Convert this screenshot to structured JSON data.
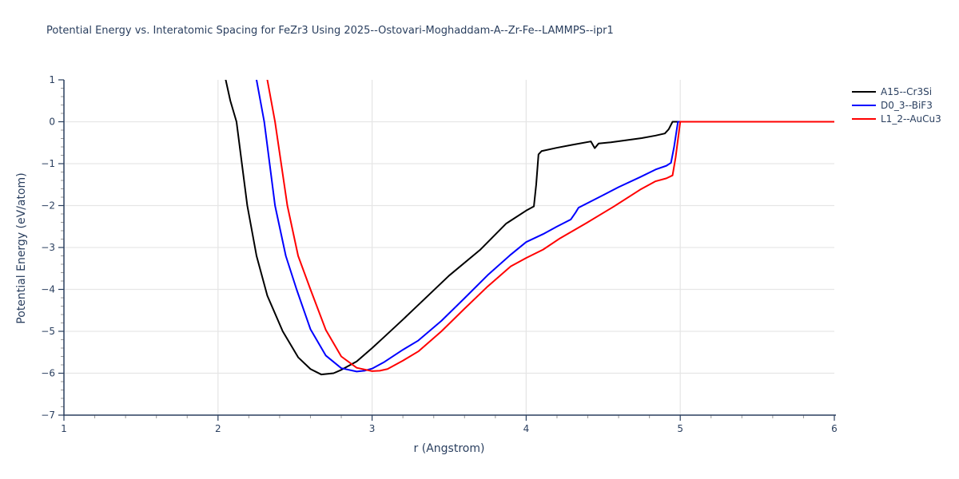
{
  "chart": {
    "title": "Potential Energy vs. Interatomic Spacing for FeZr3 Using 2025--Ostovari-Moghaddam-A--Zr-Fe--LAMMPS--ipr1"
  },
  "colors": {
    "text": "#2a3f5f",
    "grid": "#e6e6e6",
    "spine": "#2a3f5f",
    "minor_tick": "#999999",
    "background": "#ffffff"
  },
  "chart_data": {
    "type": "line",
    "title": "Potential Energy vs. Interatomic Spacing for FeZr3 Using 2025--Ostovari-Moghaddam-A--Zr-Fe--LAMMPS--ipr1",
    "xlabel": "r (Angstrom)",
    "ylabel": "Potential Energy (eV/atom)",
    "xlim": [
      1,
      6
    ],
    "ylim": [
      -7,
      1
    ],
    "x_ticks": [
      1,
      2,
      3,
      4,
      5,
      6
    ],
    "x_tick_labels": [
      "1",
      "2",
      "3",
      "4",
      "5",
      "6"
    ],
    "y_ticks": [
      1,
      0,
      -1,
      -2,
      -3,
      -4,
      -5,
      -6,
      -7
    ],
    "y_tick_labels": [
      "1",
      "0",
      "−1",
      "−2",
      "−3",
      "−4",
      "−5",
      "−6",
      "−7"
    ],
    "minor_tick_step": 0.2,
    "grid": true,
    "legend_position": "outside-right",
    "series": [
      {
        "name": "A15--Cr3Si",
        "color": "#000000",
        "points": [
          [
            2.05,
            1.0
          ],
          [
            2.08,
            0.5
          ],
          [
            2.12,
            0.0
          ],
          [
            2.155,
            -1.0
          ],
          [
            2.19,
            -2.0
          ],
          [
            2.25,
            -3.2
          ],
          [
            2.32,
            -4.15
          ],
          [
            2.42,
            -5.0
          ],
          [
            2.52,
            -5.62
          ],
          [
            2.6,
            -5.9
          ],
          [
            2.67,
            -6.03
          ],
          [
            2.75,
            -6.0
          ],
          [
            2.8,
            -5.92
          ],
          [
            2.85,
            -5.82
          ],
          [
            2.9,
            -5.72
          ],
          [
            3.0,
            -5.4
          ],
          [
            3.08,
            -5.13
          ],
          [
            3.2,
            -4.72
          ],
          [
            3.3,
            -4.37
          ],
          [
            3.5,
            -3.67
          ],
          [
            3.7,
            -3.06
          ],
          [
            3.87,
            -2.43
          ],
          [
            4.0,
            -2.12
          ],
          [
            4.05,
            -2.02
          ],
          [
            4.065,
            -1.5
          ],
          [
            4.08,
            -0.78
          ],
          [
            4.1,
            -0.7
          ],
          [
            4.2,
            -0.62
          ],
          [
            4.3,
            -0.55
          ],
          [
            4.42,
            -0.47
          ],
          [
            4.445,
            -0.63
          ],
          [
            4.47,
            -0.52
          ],
          [
            4.55,
            -0.49
          ],
          [
            4.65,
            -0.44
          ],
          [
            4.75,
            -0.39
          ],
          [
            4.84,
            -0.33
          ],
          [
            4.9,
            -0.28
          ],
          [
            4.925,
            -0.18
          ],
          [
            4.95,
            0.0
          ],
          [
            6.0,
            0.0
          ]
        ]
      },
      {
        "name": "D0_3--BiF3",
        "color": "#0000ff",
        "points": [
          [
            2.25,
            1.0
          ],
          [
            2.275,
            0.5
          ],
          [
            2.3,
            0.0
          ],
          [
            2.335,
            -1.0
          ],
          [
            2.37,
            -2.0
          ],
          [
            2.44,
            -3.2
          ],
          [
            2.51,
            -4.0
          ],
          [
            2.6,
            -4.95
          ],
          [
            2.7,
            -5.58
          ],
          [
            2.8,
            -5.88
          ],
          [
            2.9,
            -5.96
          ],
          [
            2.95,
            -5.94
          ],
          [
            3.0,
            -5.89
          ],
          [
            3.08,
            -5.73
          ],
          [
            3.2,
            -5.44
          ],
          [
            3.3,
            -5.22
          ],
          [
            3.45,
            -4.75
          ],
          [
            3.6,
            -4.21
          ],
          [
            3.75,
            -3.66
          ],
          [
            3.9,
            -3.17
          ],
          [
            4.0,
            -2.87
          ],
          [
            4.11,
            -2.68
          ],
          [
            4.2,
            -2.5
          ],
          [
            4.29,
            -2.33
          ],
          [
            4.32,
            -2.17
          ],
          [
            4.34,
            -2.05
          ],
          [
            4.42,
            -1.9
          ],
          [
            4.5,
            -1.75
          ],
          [
            4.6,
            -1.56
          ],
          [
            4.74,
            -1.32
          ],
          [
            4.84,
            -1.14
          ],
          [
            4.91,
            -1.05
          ],
          [
            4.94,
            -0.98
          ],
          [
            4.96,
            -0.6
          ],
          [
            4.985,
            0.0
          ],
          [
            6.0,
            0.0
          ]
        ]
      },
      {
        "name": "L1_2--AuCu3",
        "color": "#ff0000",
        "points": [
          [
            2.32,
            1.0
          ],
          [
            2.345,
            0.5
          ],
          [
            2.37,
            0.0
          ],
          [
            2.41,
            -1.0
          ],
          [
            2.45,
            -2.0
          ],
          [
            2.52,
            -3.2
          ],
          [
            2.6,
            -4.0
          ],
          [
            2.7,
            -4.97
          ],
          [
            2.8,
            -5.6
          ],
          [
            2.9,
            -5.87
          ],
          [
            3.0,
            -5.95
          ],
          [
            3.05,
            -5.94
          ],
          [
            3.1,
            -5.9
          ],
          [
            3.2,
            -5.7
          ],
          [
            3.3,
            -5.48
          ],
          [
            3.45,
            -5.0
          ],
          [
            3.6,
            -4.46
          ],
          [
            3.75,
            -3.93
          ],
          [
            3.9,
            -3.45
          ],
          [
            4.0,
            -3.25
          ],
          [
            4.11,
            -3.05
          ],
          [
            4.22,
            -2.78
          ],
          [
            4.39,
            -2.42
          ],
          [
            4.57,
            -2.02
          ],
          [
            4.74,
            -1.62
          ],
          [
            4.84,
            -1.42
          ],
          [
            4.91,
            -1.35
          ],
          [
            4.95,
            -1.28
          ],
          [
            4.97,
            -0.85
          ],
          [
            5.0,
            0.0
          ],
          [
            6.0,
            0.0
          ]
        ]
      }
    ]
  }
}
